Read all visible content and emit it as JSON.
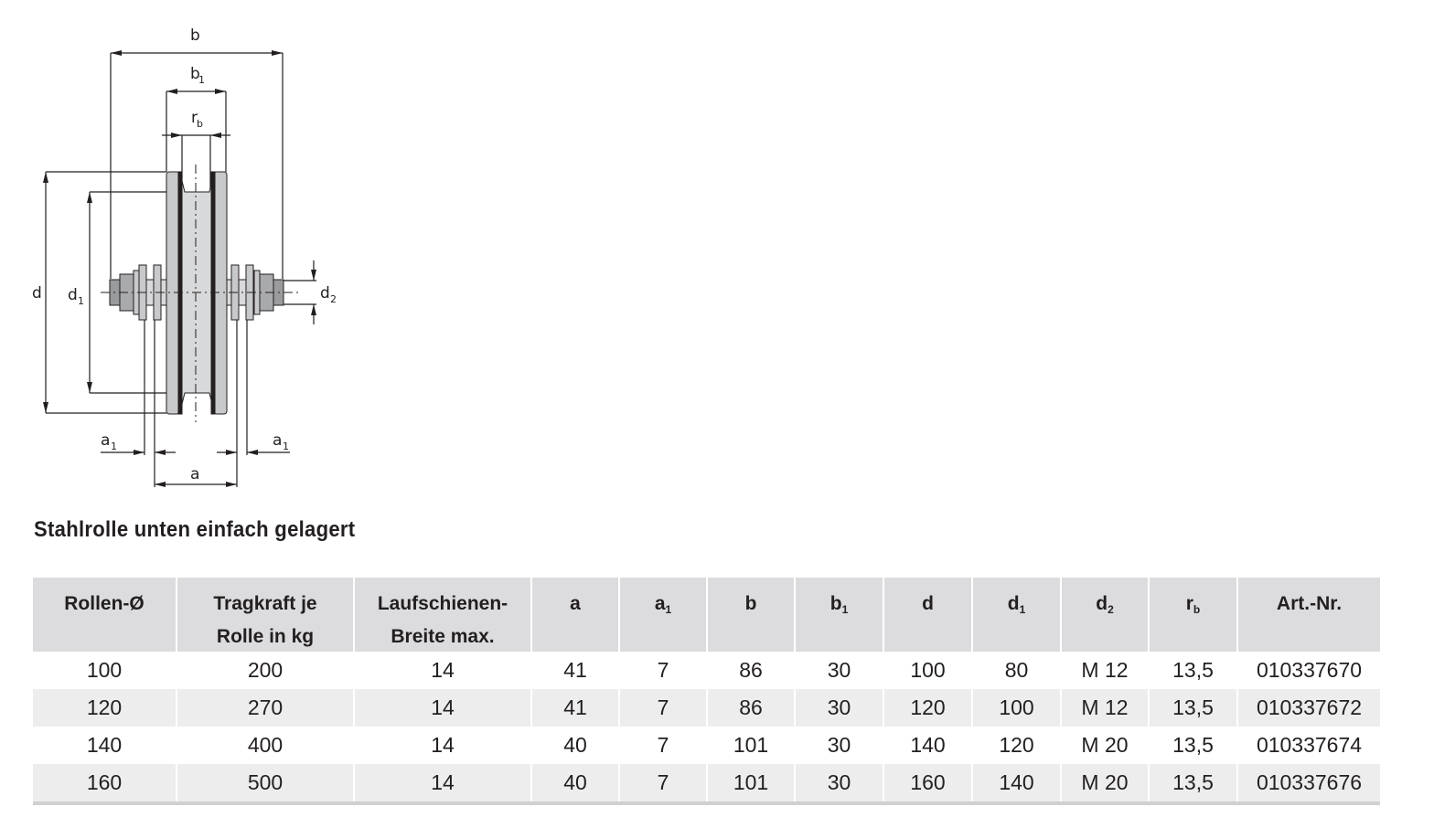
{
  "drawing": {
    "labels": {
      "b": "b",
      "b1": "b",
      "b1_sub": "1",
      "rb": "r",
      "rb_sub": "b",
      "d": "d",
      "d1": "d",
      "d1_sub": "1",
      "d2": "d",
      "d2_sub": "2",
      "a": "a",
      "a1": "a",
      "a1_sub": "1"
    }
  },
  "title": "Stahlrolle unten einfach gelagert",
  "table": {
    "headers": [
      {
        "line1": "Rollen-Ø",
        "line2": "",
        "sub": ""
      },
      {
        "line1": "Tragkraft je",
        "line2": "Rolle in kg",
        "sub": ""
      },
      {
        "line1": "Laufschienen-",
        "line2": "Breite max.",
        "sub": ""
      },
      {
        "line1": "a",
        "line2": "",
        "sub": ""
      },
      {
        "line1": "a",
        "line2": "",
        "sub": "1"
      },
      {
        "line1": "b",
        "line2": "",
        "sub": ""
      },
      {
        "line1": "b",
        "line2": "",
        "sub": "1"
      },
      {
        "line1": "d",
        "line2": "",
        "sub": ""
      },
      {
        "line1": "d",
        "line2": "",
        "sub": "1"
      },
      {
        "line1": "d",
        "line2": "",
        "sub": "2"
      },
      {
        "line1": "r",
        "line2": "",
        "sub": "b"
      },
      {
        "line1": "Art.-Nr.",
        "line2": "",
        "sub": ""
      }
    ],
    "rows": [
      [
        "100",
        "200",
        "14",
        "41",
        "7",
        "86",
        "30",
        "100",
        "80",
        "M 12",
        "13,5",
        "010337670"
      ],
      [
        "120",
        "270",
        "14",
        "41",
        "7",
        "86",
        "30",
        "120",
        "100",
        "M 12",
        "13,5",
        "010337672"
      ],
      [
        "140",
        "400",
        "14",
        "40",
        "7",
        "101",
        "30",
        "140",
        "120",
        "M 20",
        "13,5",
        "010337674"
      ],
      [
        "160",
        "500",
        "14",
        "40",
        "7",
        "101",
        "30",
        "160",
        "140",
        "M 20",
        "13,5",
        "010337676"
      ]
    ]
  },
  "colors": {
    "header_bg": "#dcdcde",
    "alt_row_bg": "#ededed",
    "part_gray": "#c8c9cb"
  }
}
